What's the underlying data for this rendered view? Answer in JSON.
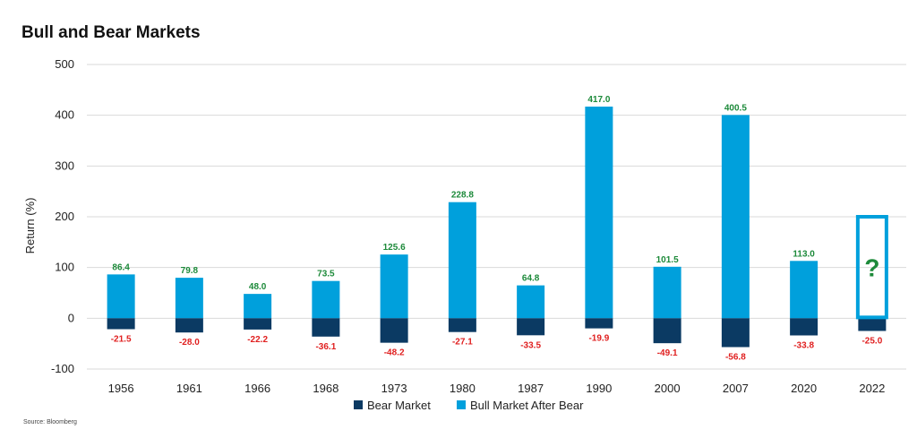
{
  "title": "Bull and Bear Markets",
  "source": "Source: Bloomberg",
  "chart_data": {
    "type": "bar",
    "title": "Bull and Bear Markets",
    "xlabel": "",
    "ylabel": "Return (%)",
    "ylim": [
      -100,
      500
    ],
    "yticks": [
      -100,
      0,
      100,
      200,
      300,
      400,
      500
    ],
    "grid": true,
    "legend_position": "bottom",
    "categories": [
      "1956",
      "1961",
      "1966",
      "1968",
      "1973",
      "1980",
      "1987",
      "1990",
      "2000",
      "2007",
      "2020",
      "2022"
    ],
    "series": [
      {
        "name": "Bear Market",
        "color": "#0b3a63",
        "values": [
          -21.5,
          -28.0,
          -22.2,
          -36.1,
          -48.2,
          -27.1,
          -33.5,
          -19.9,
          -49.1,
          -56.8,
          -33.8,
          -25.0
        ],
        "labels": [
          "-21.5",
          "-28.0",
          "-22.2",
          "-36.1",
          "-48.2",
          "-27.1",
          "-33.5",
          "-19.9",
          "-49.1",
          "-56.8",
          "-33.8",
          "-25.0"
        ]
      },
      {
        "name": "Bull Market After Bear",
        "color": "#00a0dc",
        "values": [
          86.4,
          79.8,
          48.0,
          73.5,
          125.6,
          228.8,
          64.8,
          417.0,
          101.5,
          400.5,
          113.0,
          null
        ],
        "labels": [
          "86.4",
          "79.8",
          "48.0",
          "73.5",
          "125.6",
          "228.8",
          "64.8",
          "417.0",
          "101.5",
          "400.5",
          "113.0",
          ""
        ]
      }
    ],
    "annotation": {
      "category": "2022",
      "text": "?",
      "box_top_value": 200,
      "color": "#00a0dc",
      "text_color": "#1d8a3a"
    }
  }
}
